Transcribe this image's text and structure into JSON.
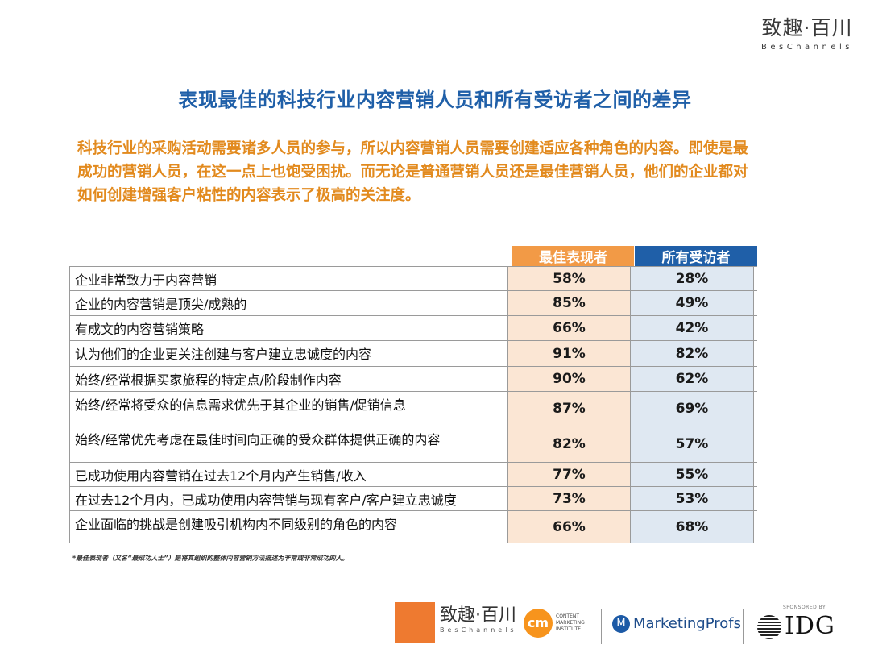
{
  "brand": {
    "cn": "致趣·百川",
    "en": "BesChannels"
  },
  "title": "表现最佳的科技行业内容营销人员和所有受访者之间的差异",
  "intro": "科技行业的采购活动需要诸多人员的参与，所以内容营销人员需要创建适应各种角色的内容。即使是最成功的营销人员，在这一点上也饱受困扰。而无论是普通营销人员还是最佳营销人员，他们的企业都对如何创建增强客户粘性的内容表示了极高的关注度。",
  "table": {
    "col1": "最佳表现者",
    "col2": "所有受访者",
    "rows": [
      {
        "label": "企业非常致力于内容营销",
        "v1": "58%",
        "v2": "28%"
      },
      {
        "label": "企业的内容营销是顶尖/成熟的",
        "v1": "85%",
        "v2": "49%"
      },
      {
        "label": "有成文的内容营销策略",
        "v1": "66%",
        "v2": "42%"
      },
      {
        "label": "认为他们的企业更关注创建与客户建立忠诚度的内容",
        "v1": "91%",
        "v2": "82%"
      },
      {
        "label": "始终/经常根据买家旅程的特定点/阶段制作内容",
        "v1": "90%",
        "v2": "62%"
      },
      {
        "label": "始终/经常将受众的信息需求优先于其企业的销售/促销信息",
        "v1": "87%",
        "v2": "69%"
      },
      {
        "label": "始终/经常优先考虑在最佳时间向正确的受众群体提供正确的内容",
        "v1": "82%",
        "v2": "57%"
      },
      {
        "label": "已成功使用内容营销在过去12个月内产生销售/收入",
        "v1": "77%",
        "v2": "55%"
      },
      {
        "label": "在过去12个月内，已成功使用内容营销与现有客户/客户建立忠诚度",
        "v1": "73%",
        "v2": "53%"
      },
      {
        "label": "企业面临的挑战是创建吸引机构内不同级别的角色的内容",
        "v1": "66%",
        "v2": "68%"
      }
    ]
  },
  "footnote": "*最佳表现者（又名“最成功人士”）是将其组织的整体内容营销方法描述为非常或非常成功的人。",
  "footer": {
    "bes_cn": "致趣·百川",
    "bes_en": "BesChannels",
    "cmi_mark": "cm",
    "cmi_text": "CONTENT MARKETING INSTITUTE",
    "mp_icon": "M",
    "mp_text": "MarketingProfs",
    "sponsor": "SPONSORED BY",
    "idg": "IDG"
  }
}
